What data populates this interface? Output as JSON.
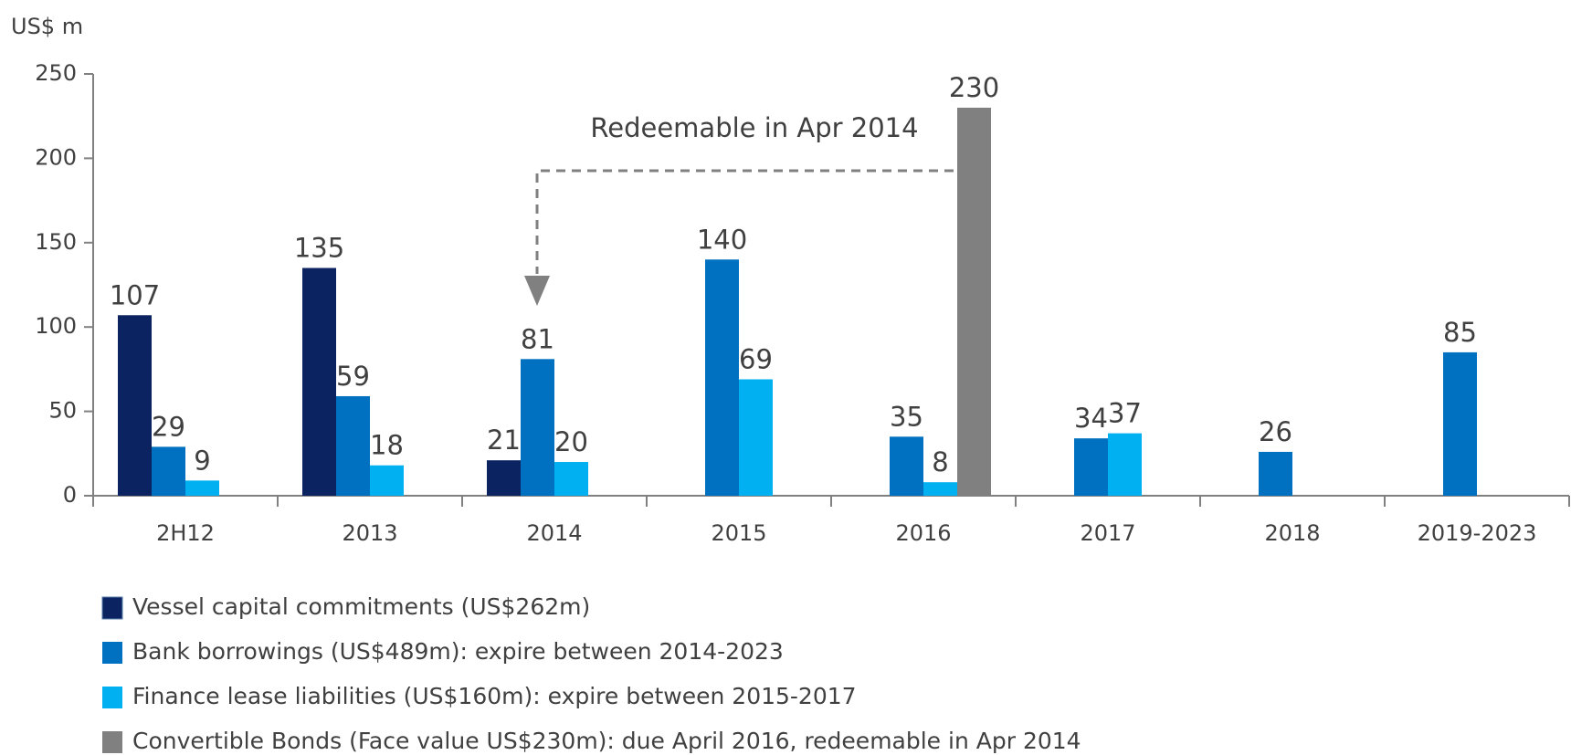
{
  "chart_data": {
    "type": "bar",
    "y_label": "US$ m",
    "annotation": "Redeemable in Apr 2014",
    "categories": [
      "2H12",
      "2013",
      "2014",
      "2015",
      "2016",
      "2017",
      "2018",
      "2019-2023"
    ],
    "series": [
      {
        "name": "Vessel capital commitments (US$262m)",
        "color": "#0b2461",
        "values": [
          107,
          135,
          21,
          null,
          null,
          null,
          null,
          null
        ]
      },
      {
        "name": "Bank borrowings (US$489m): expire between 2014-2023",
        "color": "#0070c0",
        "values": [
          29,
          59,
          81,
          140,
          35,
          34,
          26,
          85
        ]
      },
      {
        "name": "Finance lease liabilities (US$160m): expire between 2015-2017",
        "color": "#00b0f0",
        "values": [
          9,
          18,
          20,
          69,
          8,
          37,
          null,
          null
        ]
      },
      {
        "name": "Convertible Bonds (Face value US$230m): due April 2016, redeemable in Apr 2014",
        "color": "#808080",
        "values": [
          null,
          null,
          null,
          null,
          230,
          null,
          null,
          null
        ]
      }
    ],
    "ylim": [
      0,
      250
    ],
    "yticks": [
      0,
      50,
      100,
      150,
      200,
      250
    ],
    "grid": false
  }
}
